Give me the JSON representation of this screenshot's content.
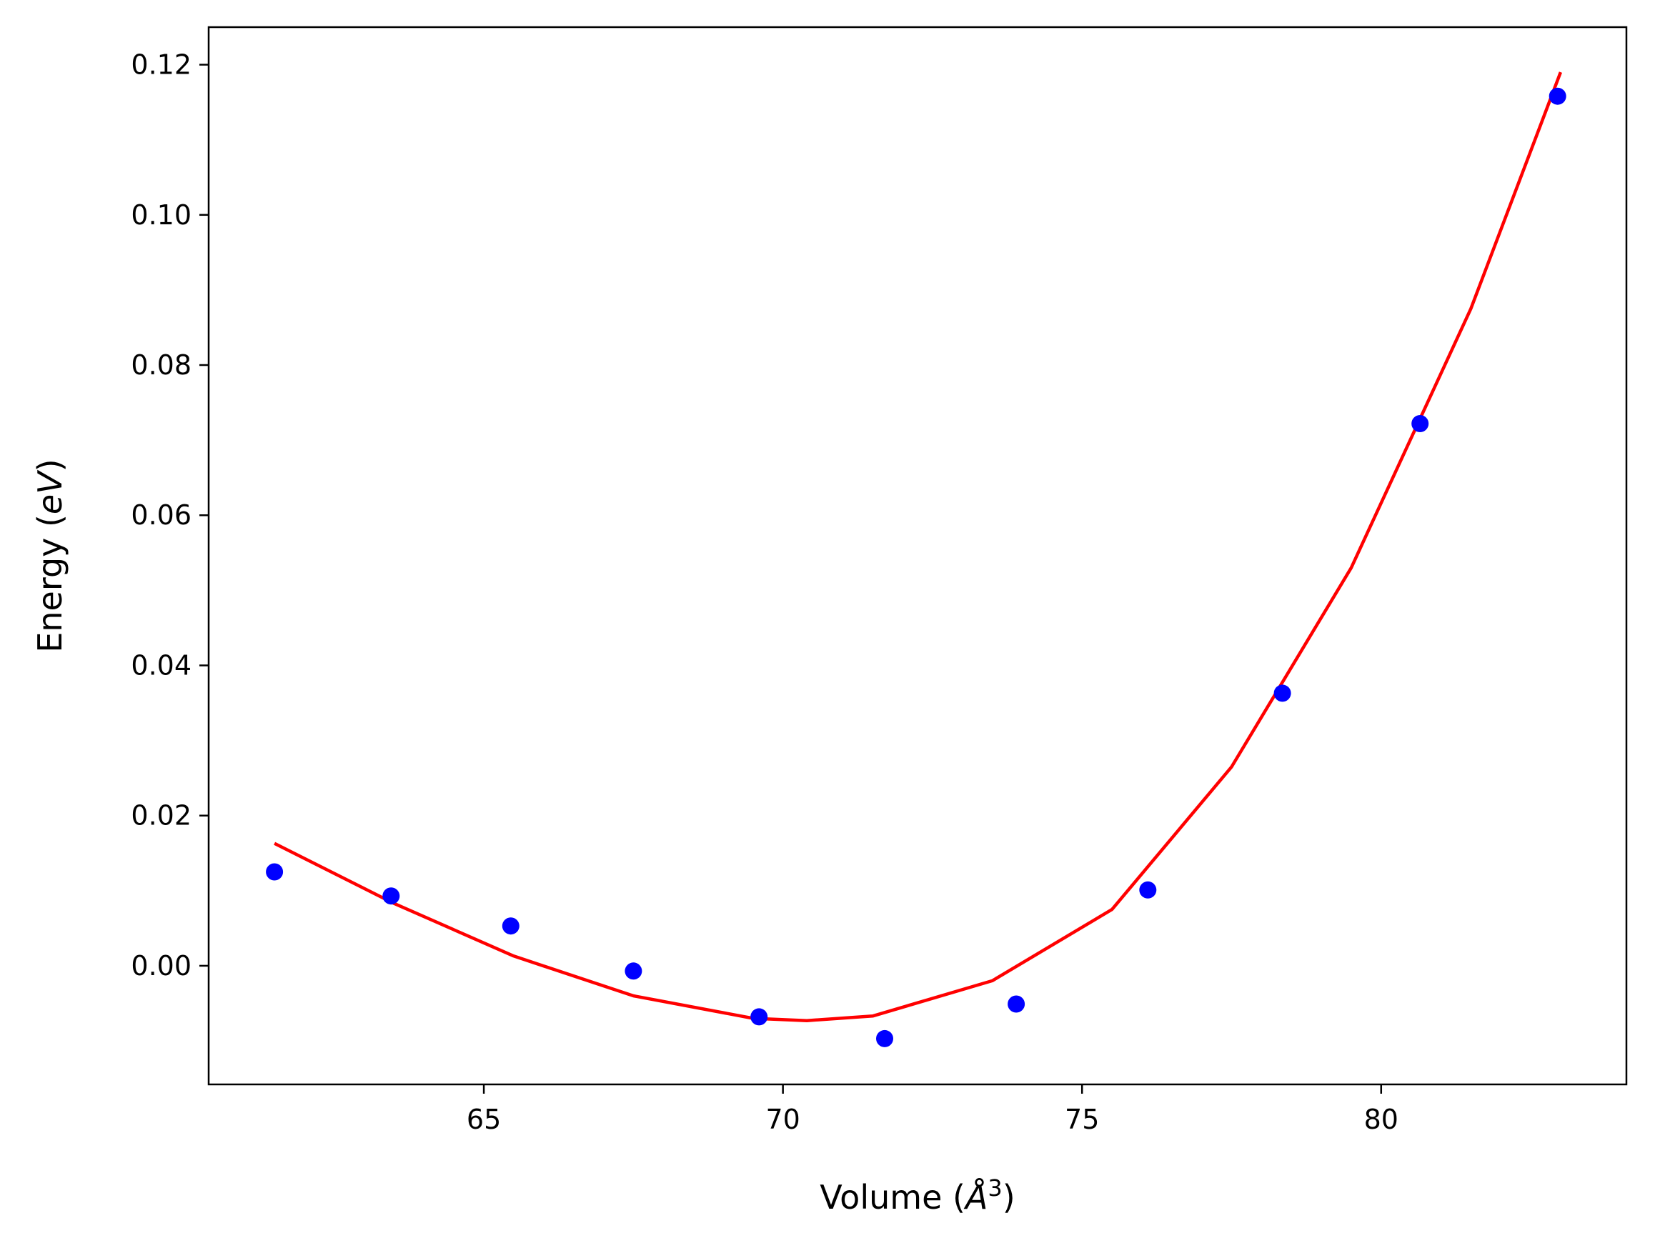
{
  "chart_data": {
    "type": "scatter",
    "xlabel": "Volume (Å³)",
    "ylabel": "Energy (eV)",
    "xlabel_parts": {
      "prefix": "Volume (",
      "unit": "Å",
      "sup": "3",
      "suffix": ")"
    },
    "ylabel_parts": {
      "prefix": "Energy (",
      "unit": "eV",
      "suffix": ")"
    },
    "xlim": [
      60.4,
      84.1
    ],
    "ylim": [
      -0.0158,
      0.125
    ],
    "xticks": [
      65,
      70,
      75,
      80
    ],
    "xtick_labels": [
      "65",
      "70",
      "75",
      "80"
    ],
    "yticks": [
      0.0,
      0.02,
      0.04,
      0.06,
      0.08,
      0.1,
      0.12
    ],
    "ytick_labels": [
      "0.00",
      "0.02",
      "0.04",
      "0.06",
      "0.08",
      "0.10",
      "0.12"
    ],
    "grid": false,
    "legend": "none",
    "points": {
      "color": "#0000ff",
      "x": [
        61.5,
        63.45,
        65.45,
        67.5,
        69.6,
        71.7,
        73.9,
        76.1,
        78.35,
        80.65,
        82.95
      ],
      "y": [
        0.0125,
        0.0093,
        0.0053,
        -0.0007,
        -0.0068,
        -0.0097,
        -0.0051,
        0.0101,
        0.0363,
        0.0722,
        0.1158
      ]
    },
    "fit_curve": {
      "color": "#ff0000",
      "x": [
        61.5,
        63.5,
        65.5,
        67.5,
        69.5,
        70.4,
        71.5,
        73.5,
        75.5,
        77.5,
        79.5,
        81.5,
        83.0
      ],
      "y": [
        0.0163,
        0.0083,
        0.0013,
        -0.004,
        -0.007,
        -0.0073,
        -0.0067,
        -0.002,
        0.0075,
        0.0265,
        0.053,
        0.0875,
        0.119
      ]
    }
  }
}
